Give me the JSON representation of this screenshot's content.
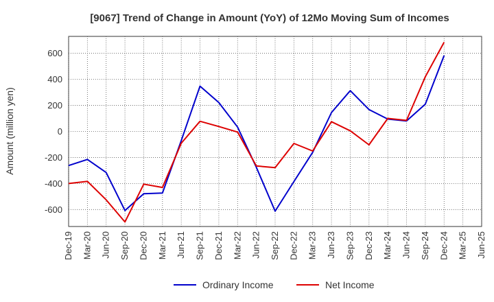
{
  "chart_data": {
    "type": "line",
    "title": "[9067]  Trend of Change in Amount (YoY) of 12Mo Moving Sum of Incomes",
    "xlabel": "",
    "ylabel": "Amount (million yen)",
    "ylim": [
      -730,
      730
    ],
    "yticks": [
      600,
      400,
      200,
      0,
      -200,
      -400,
      -600
    ],
    "ytick_labels": [
      "600",
      "400",
      "200",
      "0",
      "-200",
      "-400",
      "-600"
    ],
    "categories": [
      "Dec-19",
      "Mar-20",
      "Jun-20",
      "Sep-20",
      "Dec-20",
      "Mar-21",
      "Jun-21",
      "Sep-21",
      "Dec-21",
      "Mar-22",
      "Jun-22",
      "Sep-22",
      "Dec-22",
      "Mar-23",
      "Jun-23",
      "Sep-23",
      "Dec-23",
      "Mar-24",
      "Jun-24",
      "Sep-24",
      "Dec-24",
      "Mar-25",
      "Jun-25"
    ],
    "grid": true,
    "legend_position": "bottom",
    "series": [
      {
        "name": "Ordinary Income",
        "color": "#0000cc",
        "values": [
          -262,
          -215,
          -315,
          -607,
          -478,
          -473,
          -70,
          348,
          222,
          33,
          -275,
          -612,
          -385,
          -160,
          145,
          313,
          168,
          95,
          80,
          210,
          583,
          null,
          null
        ]
      },
      {
        "name": "Net Income",
        "color": "#dd0000",
        "values": [
          -400,
          -383,
          -525,
          -695,
          -405,
          -430,
          -90,
          78,
          38,
          -5,
          -265,
          -278,
          -92,
          -150,
          75,
          5,
          -103,
          100,
          85,
          420,
          685,
          null,
          null
        ]
      }
    ]
  }
}
